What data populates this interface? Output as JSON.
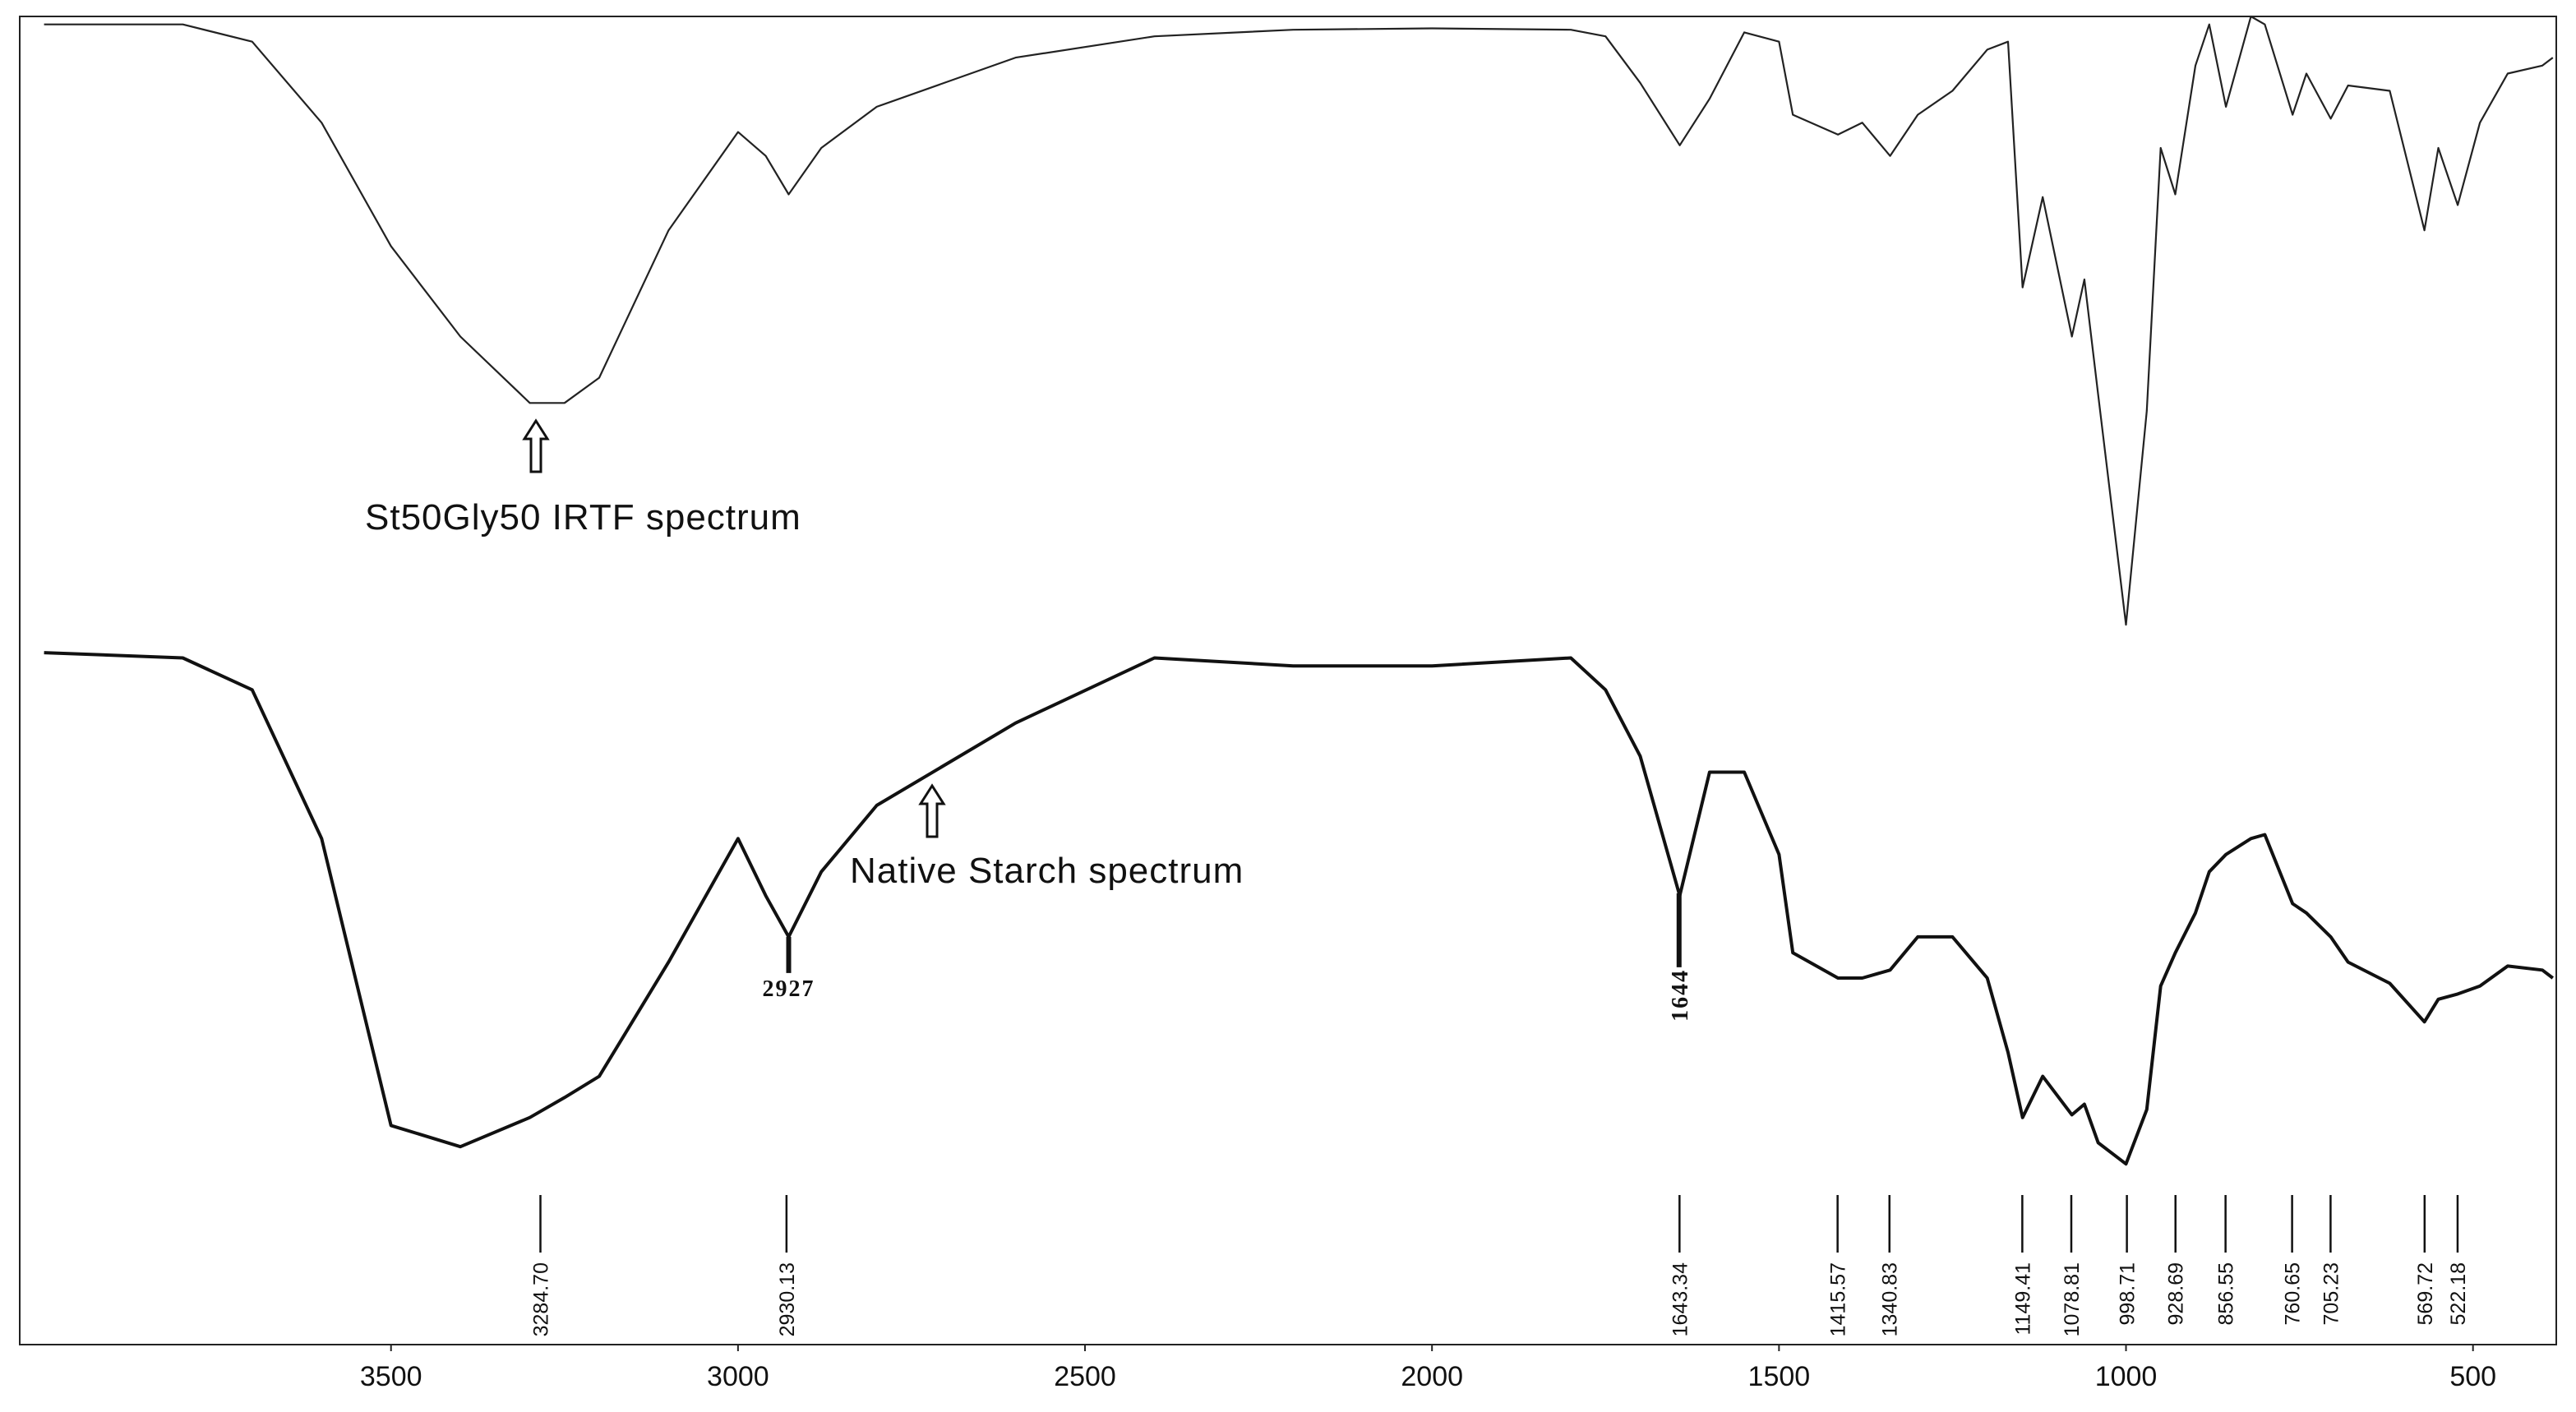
{
  "chart_data": {
    "type": "line",
    "x": [
      4000,
      3800,
      3700,
      3600,
      3500,
      3400,
      3300,
      3250,
      3200,
      3100,
      3000,
      2960,
      2927,
      2880,
      2800,
      2600,
      2400,
      2200,
      2000,
      1800,
      1750,
      1700,
      1643,
      1600,
      1550,
      1500,
      1480,
      1415,
      1380,
      1340,
      1300,
      1250,
      1200,
      1170,
      1149,
      1120,
      1078,
      1060,
      1040,
      1000,
      970,
      950,
      929,
      900,
      880,
      856,
      820,
      800,
      760,
      740,
      705,
      680,
      620,
      570,
      550,
      522,
      490,
      450,
      400,
      385
    ],
    "series": [
      {
        "color": "#222222",
        "values": [
          99.4,
          99.4,
          98.1,
          92.0,
          82.7,
          75.9,
          70.9,
          70.9,
          72.8,
          83.9,
          91.3,
          89.5,
          86.6,
          90.1,
          93.2,
          96.9,
          98.5,
          99.0,
          99.1,
          99.0,
          98.5,
          95.0,
          90.3,
          93.8,
          98.8,
          98.1,
          92.6,
          91.1,
          92.0,
          89.5,
          92.6,
          94.4,
          97.5,
          98.1,
          79.6,
          86.4,
          75.9,
          80.2,
          71.5,
          54.2,
          70.3,
          90.1,
          86.6,
          96.3,
          99.4,
          93.2,
          100.0,
          99.4,
          92.6,
          95.7,
          92.3,
          94.8,
          94.4,
          83.9,
          90.1,
          85.8,
          92.0,
          95.7,
          96.3,
          96.9
        ]
      },
      {
        "color": "#111111",
        "values": [
          52.1,
          51.7,
          49.3,
          38.1,
          16.5,
          14.9,
          17.1,
          18.6,
          20.2,
          28.8,
          38.1,
          33.8,
          30.7,
          35.6,
          40.6,
          46.8,
          51.7,
          51.1,
          51.1,
          51.7,
          49.3,
          44.3,
          33.8,
          43.1,
          43.1,
          36.9,
          29.5,
          27.6,
          27.6,
          28.2,
          30.7,
          30.7,
          27.6,
          22.0,
          17.1,
          20.2,
          17.3,
          18.1,
          15.2,
          13.6,
          17.7,
          27.0,
          29.5,
          32.5,
          35.6,
          36.9,
          38.1,
          38.4,
          33.2,
          32.5,
          30.7,
          28.8,
          27.2,
          24.3,
          26.0,
          26.4,
          27.0,
          28.5,
          28.2,
          27.6
        ]
      }
    ],
    "annotations": [
      "St50Gly50 IRTF spectrum",
      "Native Starch spectrum"
    ],
    "marked_peaks": [
      2927,
      1644
    ],
    "peaks": [
      {
        "value": 3284.7,
        "label": "3284.70"
      },
      {
        "value": 2930.13,
        "label": "2930.13"
      },
      {
        "value": 1643.34,
        "label": "1643.34"
      },
      {
        "value": 1415.57,
        "label": "1415.57"
      },
      {
        "value": 1340.83,
        "label": "1340.83"
      },
      {
        "value": 1149.41,
        "label": "1149.41"
      },
      {
        "value": 1078.81,
        "label": "1078.81"
      },
      {
        "value": 998.71,
        "label": "998.71"
      },
      {
        "value": 928.69,
        "label": "928.69"
      },
      {
        "value": 856.55,
        "label": "856.55"
      },
      {
        "value": 760.65,
        "label": "760.65"
      },
      {
        "value": 705.23,
        "label": "705.23"
      },
      {
        "value": 569.72,
        "label": "569.72"
      },
      {
        "value": 522.18,
        "label": "522.18"
      }
    ],
    "xlim": [
      4035,
      380
    ],
    "ylim": [
      0,
      100
    ],
    "xticks": [
      3500,
      3000,
      2500,
      2000,
      1500,
      1000,
      500
    ]
  }
}
